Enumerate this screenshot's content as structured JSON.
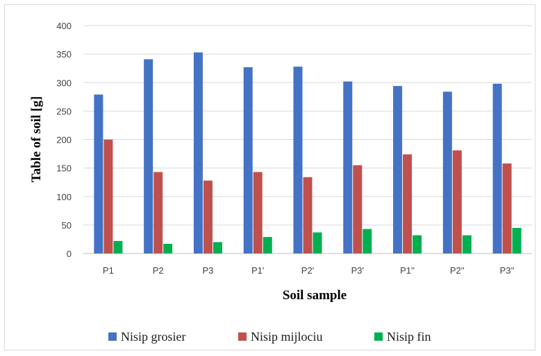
{
  "chart_data": {
    "type": "bar",
    "title": "",
    "xlabel": "Soil sample",
    "ylabel": "Table of soil [g]",
    "ylim": [
      0,
      400
    ],
    "yticks": [
      0,
      50,
      100,
      150,
      200,
      250,
      300,
      350,
      400
    ],
    "grid": true,
    "legend_position": "bottom",
    "categories": [
      "P1",
      "P2",
      "P3",
      "P1'",
      "P2'",
      "P3'",
      "P1''",
      "P2''",
      "P3''"
    ],
    "series": [
      {
        "name": "Nisip grosier",
        "color": "#4472C4",
        "values": [
          279,
          341,
          353,
          327,
          328,
          302,
          294,
          284,
          298
        ]
      },
      {
        "name": "Nisip mijlociu",
        "color": "#C0504D",
        "values": [
          200,
          143,
          128,
          143,
          134,
          155,
          174,
          181,
          158
        ]
      },
      {
        "name": "Nisip fin",
        "color": "#00B050",
        "values": [
          22,
          17,
          20,
          29,
          37,
          43,
          32,
          32,
          45
        ]
      }
    ]
  }
}
